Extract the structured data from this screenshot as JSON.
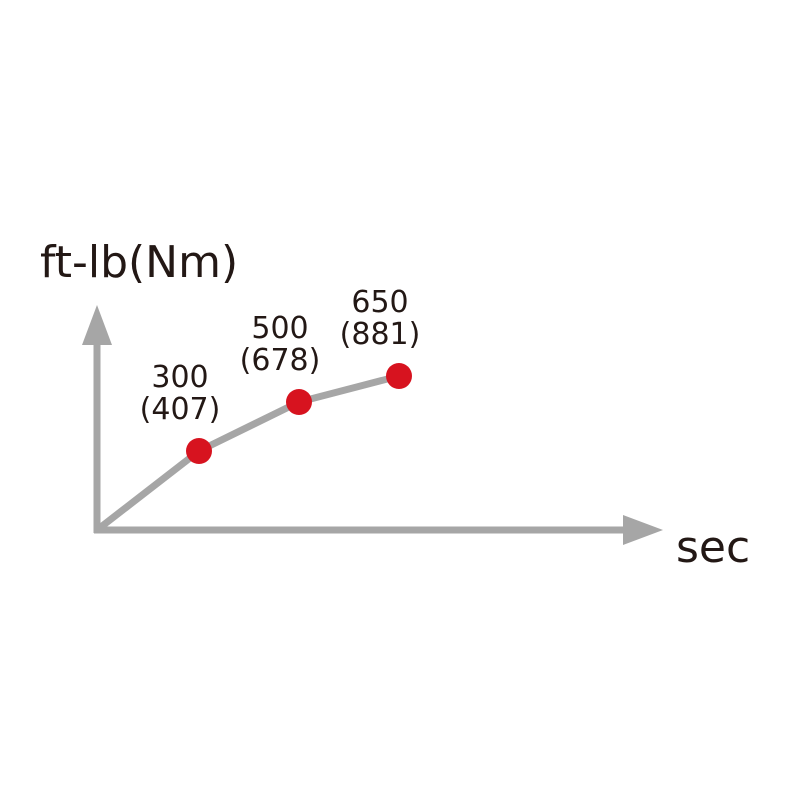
{
  "chart_data": {
    "type": "line",
    "title": "",
    "ylabel": "ft-lb(Nm)",
    "xlabel": "sec",
    "grid": false,
    "series": [
      {
        "values": [
          300,
          500,
          650
        ],
        "secondary_values": [
          407,
          678,
          881
        ],
        "point_labels": [
          {
            "primary": "300",
            "secondary": "(407)"
          },
          {
            "primary": "500",
            "secondary": "(678)"
          },
          {
            "primary": "650",
            "secondary": "(881)"
          }
        ]
      }
    ],
    "colors": {
      "axis": "#a6a6a6",
      "line": "#a6a6a6",
      "marker": "#d7131f",
      "text": "#231815"
    }
  }
}
